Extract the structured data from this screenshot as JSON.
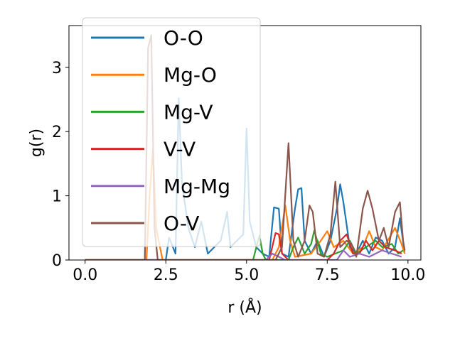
{
  "chart_data": {
    "type": "line",
    "xlabel": "r (Å)",
    "ylabel": "g(r)",
    "xlim": [
      -0.5,
      10.4
    ],
    "ylim": [
      0,
      3.65
    ],
    "xticks": [
      0.0,
      2.5,
      5.0,
      7.5,
      10.0
    ],
    "xtick_labels": [
      "0.0",
      "2.5",
      "5.0",
      "7.5",
      "10.0"
    ],
    "yticks": [
      0,
      1,
      2,
      3
    ],
    "ytick_labels": [
      "0",
      "1",
      "2",
      "3"
    ],
    "grid": false,
    "legend_position": "top-left",
    "series": [
      {
        "name": "O-O",
        "color": "#1f77b4",
        "points": [
          [
            0,
            0
          ],
          [
            2.5,
            0
          ],
          [
            2.6,
            0.35
          ],
          [
            2.8,
            0.1
          ],
          [
            2.9,
            2.52
          ],
          [
            3.0,
            1.2
          ],
          [
            3.2,
            0.5
          ],
          [
            3.4,
            0.2
          ],
          [
            3.6,
            0.6
          ],
          [
            3.8,
            0.1
          ],
          [
            4.0,
            0.2
          ],
          [
            4.2,
            0.3
          ],
          [
            4.4,
            0.75
          ],
          [
            4.5,
            0.2
          ],
          [
            4.7,
            0.3
          ],
          [
            4.9,
            0.4
          ],
          [
            5.0,
            2.05
          ],
          [
            5.1,
            0.6
          ],
          [
            5.3,
            0.2
          ],
          [
            5.5,
            0.1
          ],
          [
            5.7,
            0.05
          ],
          [
            5.85,
            0.82
          ],
          [
            6.0,
            0.8
          ],
          [
            6.1,
            0.1
          ],
          [
            6.3,
            0.05
          ],
          [
            6.5,
            0.8
          ],
          [
            6.6,
            1.1
          ],
          [
            6.7,
            1.12
          ],
          [
            6.8,
            0.3
          ],
          [
            7.0,
            0.1
          ],
          [
            7.2,
            0.3
          ],
          [
            7.4,
            0.05
          ],
          [
            7.6,
            0.3
          ],
          [
            7.8,
            0.8
          ],
          [
            7.9,
            1.18
          ],
          [
            8.0,
            0.9
          ],
          [
            8.2,
            0.2
          ],
          [
            8.4,
            0.1
          ],
          [
            8.6,
            0.3
          ],
          [
            8.8,
            0.1
          ],
          [
            9.0,
            0.35
          ],
          [
            9.2,
            0.3
          ],
          [
            9.4,
            0.1
          ],
          [
            9.6,
            0.2
          ],
          [
            9.75,
            0.65
          ],
          [
            9.9,
            0.1
          ]
        ]
      },
      {
        "name": "Mg-O",
        "color": "#ff7f0e",
        "points": [
          [
            0,
            0
          ],
          [
            1.9,
            0
          ],
          [
            2.0,
            1.0
          ],
          [
            2.1,
            1.74
          ],
          [
            2.2,
            0.5
          ],
          [
            2.4,
            0
          ],
          [
            5.8,
            0
          ],
          [
            6.0,
            0.2
          ],
          [
            6.2,
            0.85
          ],
          [
            6.35,
            0.3
          ],
          [
            6.5,
            0.05
          ],
          [
            7.0,
            0.1
          ],
          [
            7.3,
            0.3
          ],
          [
            7.5,
            0.45
          ],
          [
            7.7,
            0.2
          ],
          [
            8.0,
            0.3
          ],
          [
            8.3,
            0.1
          ],
          [
            8.6,
            0.2
          ],
          [
            8.8,
            0.45
          ],
          [
            9.0,
            0.2
          ],
          [
            9.2,
            0.15
          ],
          [
            9.6,
            0.5
          ],
          [
            9.8,
            0.25
          ],
          [
            9.9,
            0.1
          ]
        ]
      },
      {
        "name": "Mg-V",
        "color": "#2ca02c",
        "points": [
          [
            0,
            0
          ],
          [
            5.2,
            0
          ],
          [
            5.4,
            0.38
          ],
          [
            5.5,
            0.1
          ],
          [
            5.6,
            0
          ],
          [
            6.3,
            0
          ],
          [
            6.45,
            0.2
          ],
          [
            6.6,
            0.35
          ],
          [
            6.8,
            0.1
          ],
          [
            7.0,
            0.25
          ],
          [
            7.1,
            0.46
          ],
          [
            7.3,
            0.1
          ],
          [
            7.5,
            0.05
          ],
          [
            8.0,
            0.15
          ],
          [
            8.2,
            0.3
          ],
          [
            8.4,
            0.1
          ],
          [
            8.7,
            0.2
          ],
          [
            9.0,
            0.3
          ],
          [
            9.2,
            0.2
          ],
          [
            9.5,
            0.25
          ],
          [
            9.7,
            0.1
          ],
          [
            9.85,
            0.15
          ]
        ]
      },
      {
        "name": "V-V",
        "color": "#d62728",
        "points": [
          [
            0,
            0
          ],
          [
            5.7,
            0
          ],
          [
            5.9,
            0.42
          ],
          [
            6.0,
            0.4
          ],
          [
            6.1,
            0.1
          ],
          [
            6.3,
            0
          ],
          [
            7.5,
            0
          ],
          [
            7.7,
            0.1
          ],
          [
            7.9,
            0.3
          ],
          [
            8.1,
            0.4
          ],
          [
            8.3,
            0.1
          ],
          [
            8.5,
            0.1
          ],
          [
            8.7,
            0.3
          ],
          [
            8.9,
            0.15
          ],
          [
            9.1,
            0.3
          ],
          [
            9.3,
            0.2
          ],
          [
            9.6,
            0.15
          ],
          [
            9.8,
            0.1
          ]
        ]
      },
      {
        "name": "Mg-Mg",
        "color": "#9467bd",
        "points": [
          [
            0,
            0
          ],
          [
            5.6,
            0
          ],
          [
            5.8,
            0.1
          ],
          [
            6.0,
            0.05
          ],
          [
            6.2,
            0
          ],
          [
            7.8,
            0
          ],
          [
            8.0,
            0.15
          ],
          [
            8.2,
            0.05
          ],
          [
            8.5,
            0.1
          ],
          [
            8.8,
            0.05
          ],
          [
            9.2,
            0.15
          ],
          [
            9.5,
            0.1
          ],
          [
            9.8,
            0.05
          ]
        ]
      },
      {
        "name": "O-V",
        "color": "#8c564b",
        "points": [
          [
            0,
            0
          ],
          [
            1.85,
            0
          ],
          [
            1.95,
            3.3
          ],
          [
            2.05,
            3.5
          ],
          [
            2.15,
            0.5
          ],
          [
            2.25,
            0
          ],
          [
            5.9,
            0
          ],
          [
            6.1,
            0.2
          ],
          [
            6.3,
            1.82
          ],
          [
            6.45,
            0.3
          ],
          [
            6.6,
            0.05
          ],
          [
            6.8,
            0.3
          ],
          [
            6.95,
            0.85
          ],
          [
            7.05,
            0.75
          ],
          [
            7.2,
            0.1
          ],
          [
            7.4,
            0.05
          ],
          [
            7.6,
            0.4
          ],
          [
            7.75,
            1.22
          ],
          [
            7.9,
            0.2
          ],
          [
            8.1,
            0.3
          ],
          [
            8.25,
            0.25
          ],
          [
            8.4,
            0.05
          ],
          [
            8.6,
            0.8
          ],
          [
            8.75,
            1.08
          ],
          [
            8.9,
            0.8
          ],
          [
            9.1,
            0.3
          ],
          [
            9.25,
            0.5
          ],
          [
            9.4,
            0.2
          ],
          [
            9.6,
            0.75
          ],
          [
            9.75,
            0.9
          ],
          [
            9.85,
            0.3
          ],
          [
            9.9,
            0.15
          ]
        ]
      }
    ]
  }
}
